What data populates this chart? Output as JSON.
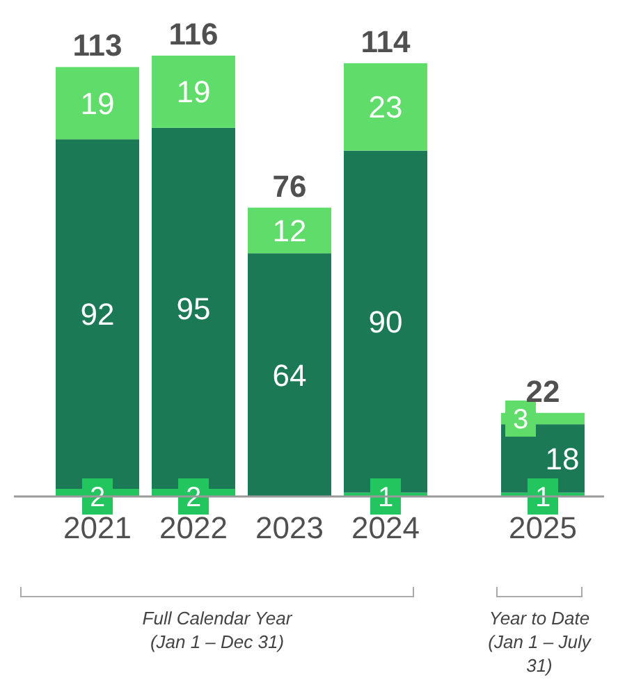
{
  "chart_data": {
    "type": "bar",
    "stacked": true,
    "data_labels": true,
    "categories": [
      "2021",
      "2022",
      "2023",
      "2024",
      "2025"
    ],
    "series": [
      {
        "color": "#22c55e",
        "values": [
          2,
          2,
          0,
          1,
          1
        ],
        "value_labels": [
          "2",
          "2",
          null,
          "1",
          "1"
        ]
      },
      {
        "color": "#1b7a55",
        "values": [
          92,
          95,
          64,
          90,
          18
        ],
        "value_labels": [
          "92",
          "95",
          "64",
          "90",
          "18"
        ]
      },
      {
        "color": "#5fdc6a",
        "values": [
          19,
          19,
          12,
          23,
          3
        ],
        "value_labels": [
          "19",
          "19",
          "12",
          "23",
          "3"
        ]
      }
    ],
    "totals": [
      "113",
      "116",
      "76",
      "114",
      "22"
    ],
    "annotations": [
      "Full Calendar Year\n(Jan 1 – Dec 31)",
      "Year to Date\n(Jan 1 – July\n31)"
    ]
  }
}
